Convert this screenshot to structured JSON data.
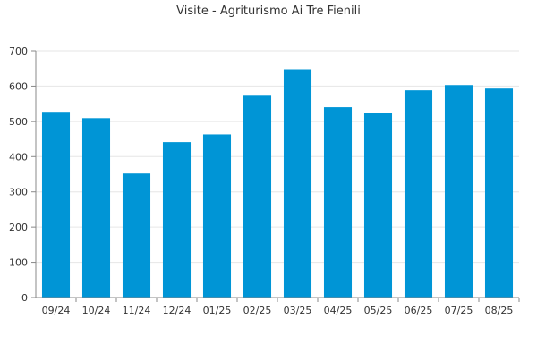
{
  "chart_data": {
    "type": "bar",
    "title": "Visite - Agriturismo Ai Tre Fienili",
    "xlabel": "",
    "ylabel": "",
    "categories": [
      "09/24",
      "10/24",
      "11/24",
      "12/24",
      "01/25",
      "02/25",
      "03/25",
      "04/25",
      "05/25",
      "06/25",
      "07/25",
      "08/25"
    ],
    "values": [
      527,
      509,
      352,
      441,
      463,
      575,
      648,
      540,
      524,
      588,
      603,
      593
    ],
    "ylim": [
      0,
      700
    ],
    "yticks": [
      0,
      100,
      200,
      300,
      400,
      500,
      600,
      700
    ],
    "grid": true,
    "legend": "none",
    "bar_color": "#0095d6"
  }
}
